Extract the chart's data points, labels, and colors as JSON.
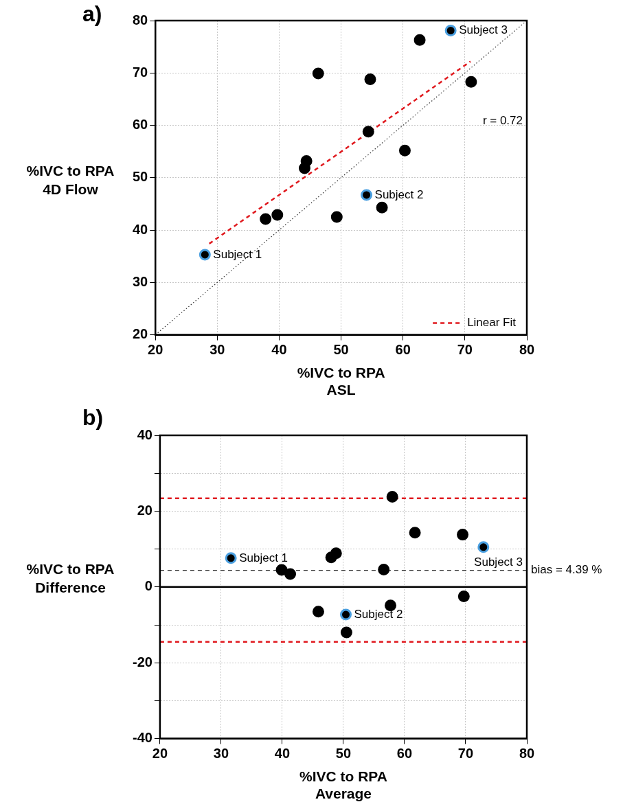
{
  "chart_data": [
    {
      "type": "scatter",
      "title": "a)",
      "xlabel": "%IVC to RPA\nASL",
      "ylabel": "%IVC to RPA\n4D Flow",
      "xlim": [
        20,
        80
      ],
      "xticks": [
        20,
        30,
        40,
        50,
        60,
        70,
        80
      ],
      "ylim": [
        20,
        80
      ],
      "yticks": [
        20,
        30,
        40,
        50,
        60,
        70,
        80
      ],
      "grid": true,
      "legend": "bottom right",
      "marker": "circle",
      "series": [
        {
          "type": "scatter",
          "color": "#000000",
          "x": [
            37.8,
            39.7,
            44.1,
            44.4,
            46.3,
            49.3,
            54.4,
            54.7,
            56.6,
            60.3,
            62.7,
            71.0
          ],
          "values": [
            42.1,
            42.9,
            51.8,
            53.2,
            69.9,
            42.5,
            58.8,
            68.8,
            44.3,
            55.2,
            76.3,
            68.3
          ]
        },
        {
          "type": "scatter",
          "color": "#4a9fe0",
          "x": [
            28.0,
            54.1,
            67.7
          ],
          "values": [
            35.3,
            46.7,
            78.1
          ]
        },
        {
          "type": "line",
          "color": "#333333",
          "line_style": "dotted",
          "marker": "none",
          "x": [
            20,
            80
          ],
          "values": [
            20,
            80
          ]
        },
        {
          "type": "line",
          "name": "Linear Fit",
          "color": "#e0191e",
          "line_style": "dashed",
          "marker": "none",
          "x": [
            28.7,
            70.9
          ],
          "values": [
            37.4,
            72.2
          ]
        }
      ],
      "annotations": [
        {
          "text": "Subject 1",
          "x": 28.0,
          "y": 35.3
        },
        {
          "text": "Subject 2",
          "x": 54.1,
          "y": 46.7
        },
        {
          "text": "Subject 3",
          "x": 67.7,
          "y": 78.1
        },
        "r = 0.72"
      ]
    },
    {
      "type": "scatter",
      "title": "b)",
      "xlabel": "%IVC to RPA\nAverage",
      "ylabel": "%IVC to RPA\nDifference",
      "xlim": [
        20,
        80
      ],
      "xticks": [
        20,
        30,
        40,
        50,
        60,
        70,
        80
      ],
      "ylim": [
        -40,
        40
      ],
      "yticks": [
        -40,
        {
          "value": -30,
          "label": null
        },
        -20,
        {
          "value": -10,
          "label": null
        },
        0,
        {
          "value": 10,
          "label": null
        },
        20,
        {
          "value": 30,
          "label": null
        },
        40
      ],
      "grid": true,
      "marker": "circle",
      "series": [
        {
          "type": "scatter",
          "color": "#000000",
          "x": [
            39.9,
            41.3,
            48.0,
            48.8,
            56.6,
            58.0,
            61.7,
            69.5,
            45.9,
            50.5,
            57.7,
            69.7
          ],
          "values": [
            4.5,
            3.4,
            7.8,
            8.9,
            4.6,
            23.8,
            14.3,
            13.8,
            -6.5,
            -12.0,
            -4.9,
            -2.5
          ]
        },
        {
          "type": "scatter",
          "color": "#4a9fe0",
          "x": [
            31.6,
            50.4,
            72.9
          ],
          "values": [
            7.6,
            -7.3,
            10.5
          ]
        }
      ],
      "ref_lines": [
        {
          "axis": "y",
          "value": 0,
          "color": "#000000",
          "line_style": "solid"
        },
        {
          "axis": "y",
          "value": 4.39,
          "label": "bias = 4.39 %",
          "color": "#333333",
          "line_style": "dashed"
        },
        {
          "axis": "y",
          "value": 23.4,
          "color": "#e0191e",
          "line_style": "dashed"
        },
        {
          "axis": "y",
          "value": -14.5,
          "color": "#e0191e",
          "line_style": "dashed"
        }
      ],
      "annotations": [
        {
          "text": "Subject 1",
          "x": 31.6,
          "y": 7.6
        },
        {
          "text": "Subject 2",
          "x": 50.4,
          "y": -7.3
        },
        {
          "text": "Subject 3",
          "x": 72.9,
          "y": 10.5
        }
      ]
    }
  ]
}
